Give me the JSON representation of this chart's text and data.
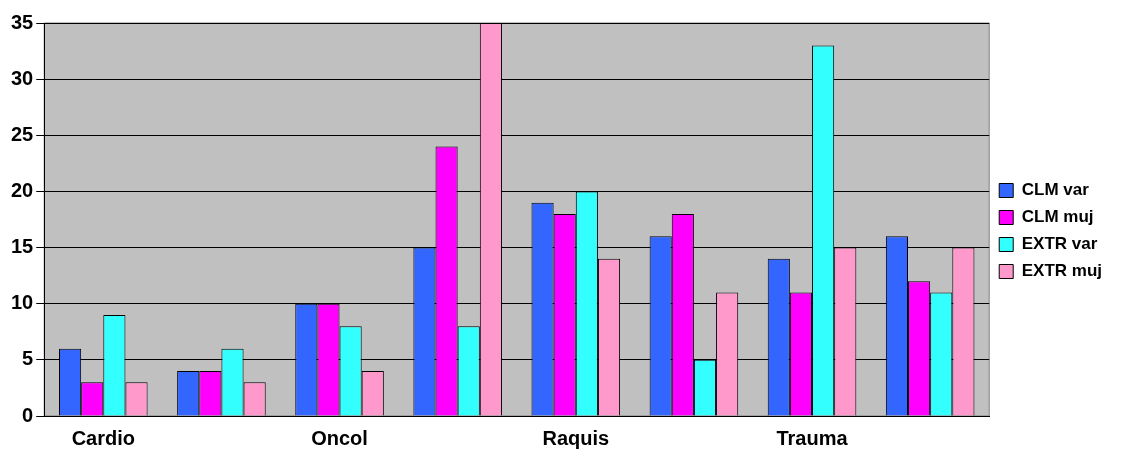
{
  "chart_data": {
    "type": "bar",
    "categories": [
      "Cardio",
      null,
      "Oncol",
      null,
      "Raquis",
      null,
      "Trauma",
      null
    ],
    "series": [
      {
        "name": "CLM var",
        "color": "#3366ff",
        "values": [
          6,
          4,
          10,
          15,
          19,
          16,
          14,
          16
        ]
      },
      {
        "name": "CLM muj",
        "color": "#ff00ff",
        "values": [
          3,
          4,
          10,
          24,
          18,
          18,
          11,
          12
        ]
      },
      {
        "name": "EXTR var",
        "color": "#33ffff",
        "values": [
          9,
          6,
          8,
          8,
          20,
          5,
          33,
          11
        ]
      },
      {
        "name": "EXTR muj",
        "color": "#ff99cc",
        "values": [
          3,
          3,
          4,
          35,
          14,
          11,
          15,
          15
        ]
      }
    ],
    "ylim": [
      0,
      35
    ],
    "yticks": [
      0,
      5,
      10,
      15,
      20,
      25,
      30,
      35
    ],
    "grid": "y",
    "legend": "right"
  }
}
